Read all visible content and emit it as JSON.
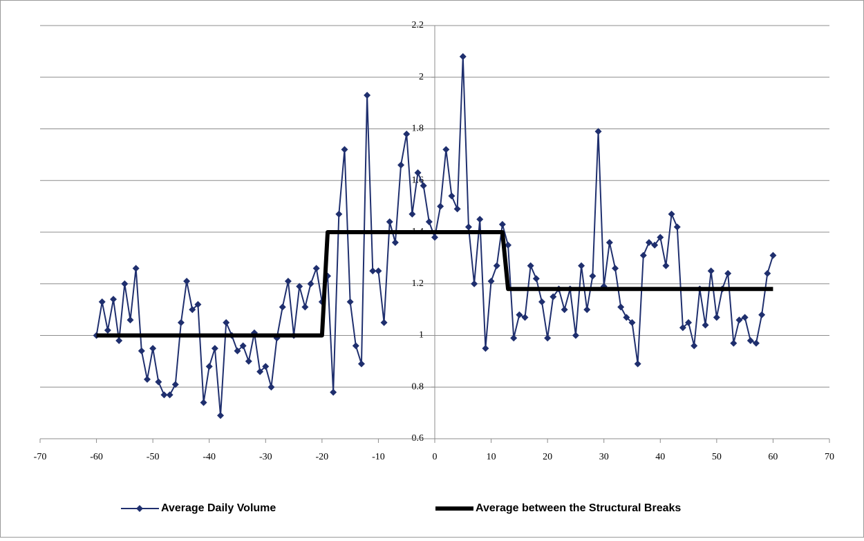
{
  "chart_data": {
    "type": "line",
    "x": [
      -60,
      -59,
      -58,
      -57,
      -56,
      -55,
      -54,
      -53,
      -52,
      -51,
      -50,
      -49,
      -48,
      -47,
      -46,
      -45,
      -44,
      -43,
      -42,
      -41,
      -40,
      -39,
      -38,
      -37,
      -36,
      -35,
      -34,
      -33,
      -32,
      -31,
      -30,
      -29,
      -28,
      -27,
      -26,
      -25,
      -24,
      -23,
      -22,
      -21,
      -20,
      -19,
      -18,
      -17,
      -16,
      -15,
      -14,
      -13,
      -12,
      -11,
      -10,
      -9,
      -8,
      -7,
      -6,
      -5,
      -4,
      -3,
      -2,
      -1,
      0,
      1,
      2,
      3,
      4,
      5,
      6,
      7,
      8,
      9,
      10,
      11,
      12,
      13,
      14,
      15,
      16,
      17,
      18,
      19,
      20,
      21,
      22,
      23,
      24,
      25,
      26,
      27,
      28,
      29,
      30,
      31,
      32,
      33,
      34,
      35,
      36,
      37,
      38,
      39,
      40,
      41,
      42,
      43,
      44,
      45,
      46,
      47,
      48,
      49,
      50,
      51,
      52,
      53,
      54,
      55,
      56,
      57,
      58,
      59,
      60
    ],
    "series": [
      {
        "name": "Average Daily Volume",
        "color": "#1f2f6e",
        "marker": "diamond",
        "values": [
          1.0,
          1.13,
          1.02,
          1.14,
          0.98,
          1.2,
          1.06,
          1.26,
          0.94,
          0.83,
          0.95,
          0.82,
          0.77,
          0.77,
          0.81,
          1.05,
          1.21,
          1.1,
          1.12,
          0.74,
          0.88,
          0.95,
          0.69,
          1.05,
          1.0,
          0.94,
          0.96,
          0.9,
          1.01,
          0.86,
          0.88,
          0.8,
          0.99,
          1.11,
          1.21,
          1.0,
          1.19,
          1.11,
          1.2,
          1.26,
          1.13,
          1.23,
          0.78,
          1.47,
          1.72,
          1.13,
          0.96,
          0.89,
          1.93,
          1.25,
          1.25,
          1.05,
          1.44,
          1.36,
          1.66,
          1.78,
          1.47,
          1.63,
          1.58,
          1.44,
          1.38,
          1.5,
          1.72,
          1.54,
          1.49,
          2.08,
          1.42,
          1.2,
          1.45,
          0.95,
          1.21,
          1.27,
          1.43,
          1.35,
          0.99,
          1.08,
          1.07,
          1.27,
          1.22,
          1.13,
          0.99,
          1.15,
          1.18,
          1.1,
          1.18,
          1.0,
          1.27,
          1.1,
          1.23,
          1.79,
          1.19,
          1.36,
          1.26,
          1.11,
          1.07,
          1.05,
          0.89,
          1.31,
          1.36,
          1.35,
          1.38,
          1.27,
          1.47,
          1.42,
          1.03,
          1.05,
          0.96,
          1.18,
          1.04,
          1.25,
          1.07,
          1.18,
          1.24,
          0.97,
          1.06,
          1.07,
          0.98,
          0.97,
          1.08,
          1.24,
          1.31
        ]
      },
      {
        "name": "Average between the Structural Breaks",
        "color": "#000000",
        "x": [
          -60,
          -20,
          -19,
          12,
          13,
          60
        ],
        "values": [
          1.0,
          1.0,
          1.4,
          1.4,
          1.18,
          1.18
        ]
      }
    ],
    "xlim": [
      -70,
      70
    ],
    "xticks": [
      -70,
      -60,
      -50,
      -40,
      -30,
      -20,
      -10,
      0,
      10,
      20,
      30,
      40,
      50,
      60,
      70
    ],
    "ylim": [
      0.6,
      2.2
    ],
    "yticks": [
      0.6,
      0.8,
      1,
      1.2,
      1.4,
      1.6,
      1.8,
      2,
      2.2
    ],
    "grid": true,
    "legend": "bottom"
  }
}
